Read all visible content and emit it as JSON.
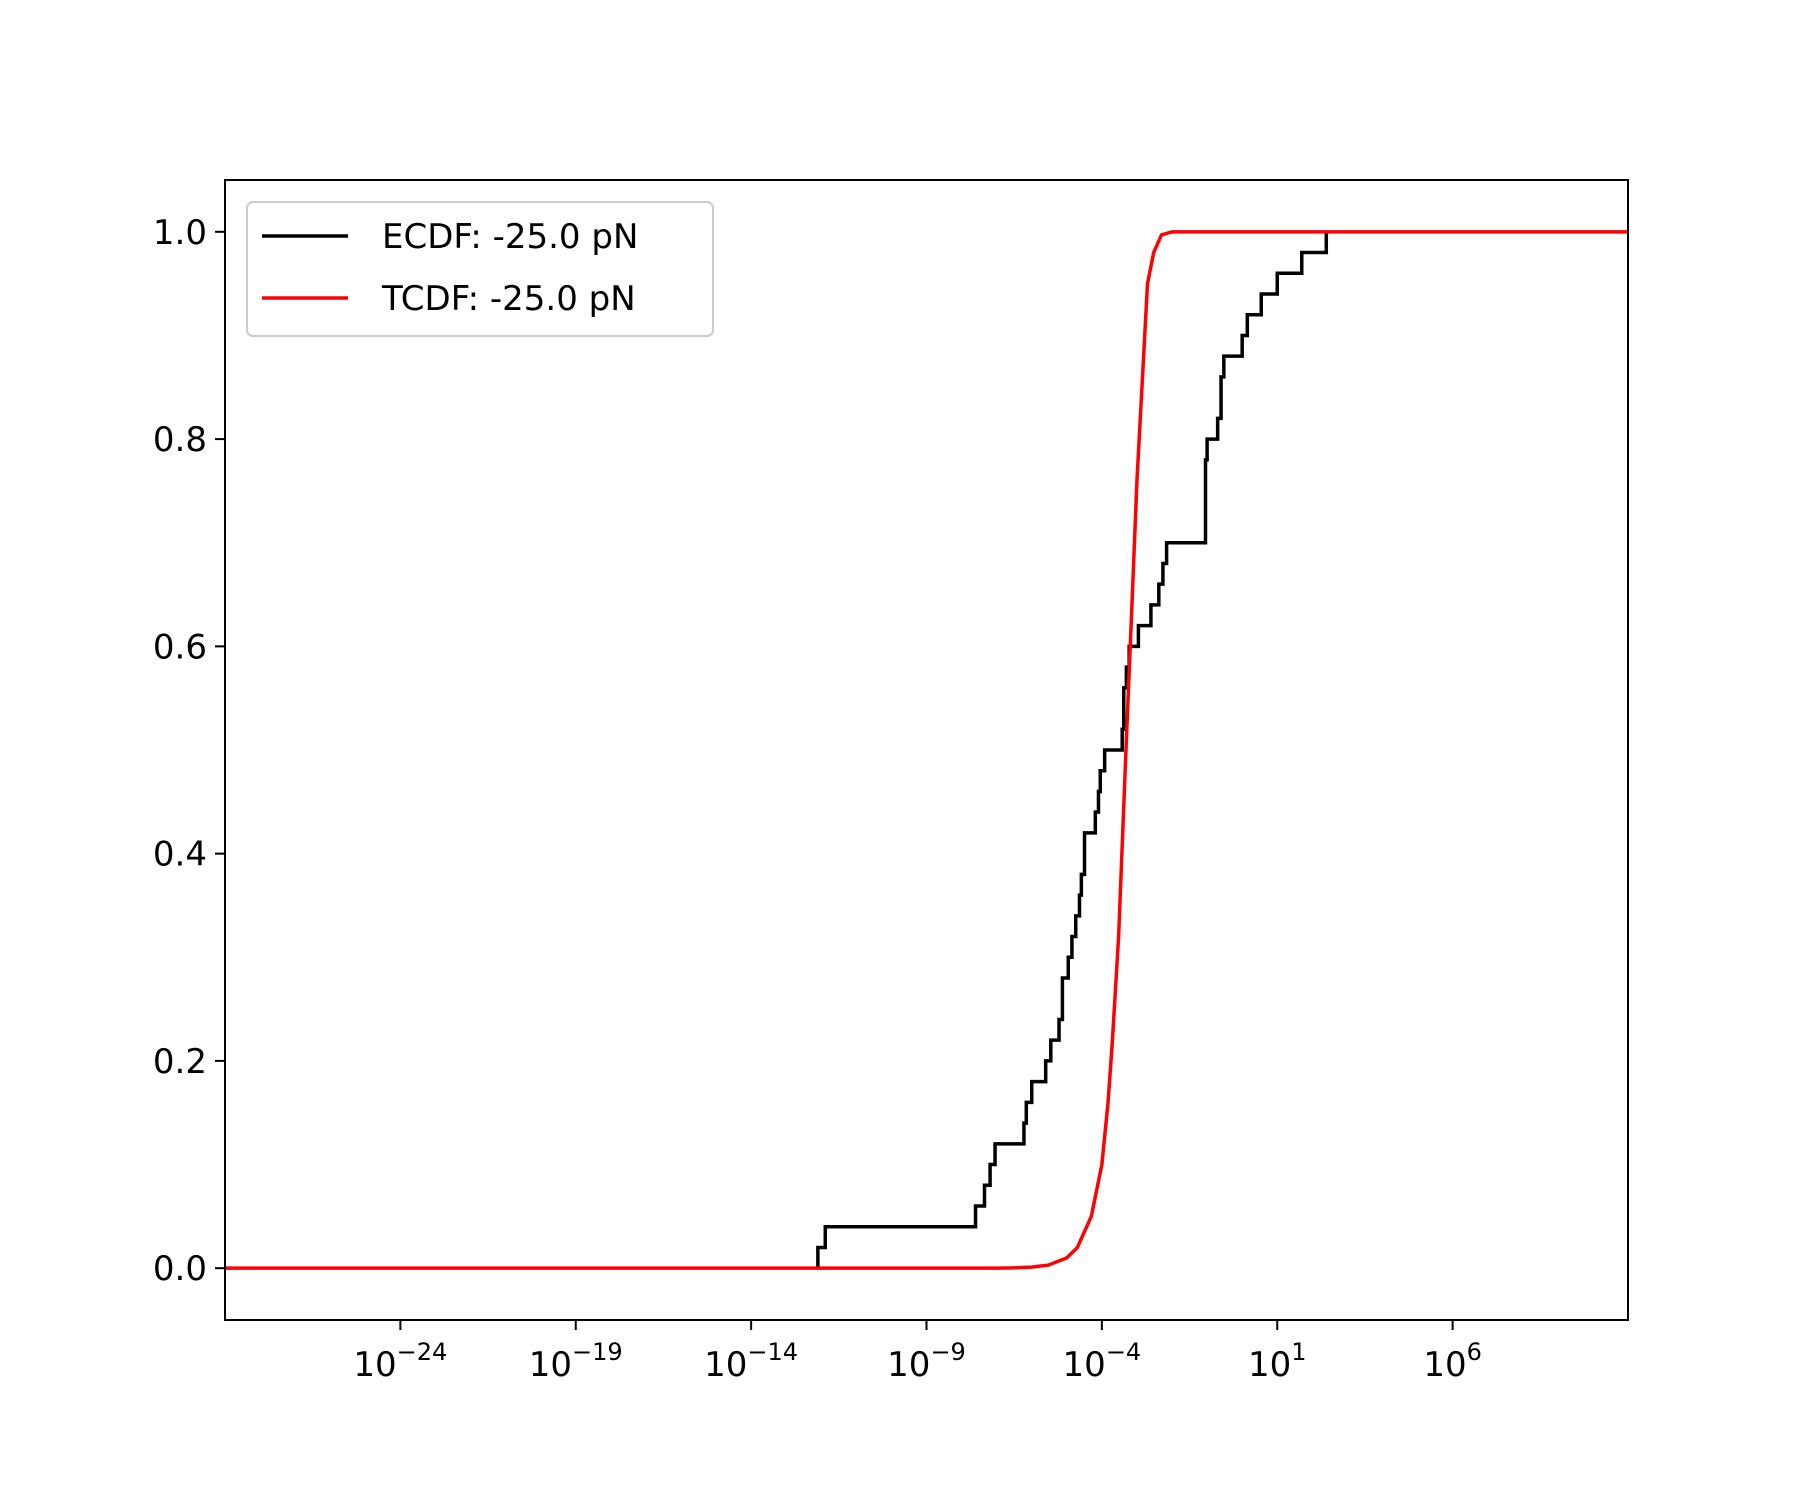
{
  "chart_data": {
    "type": "line",
    "title": "",
    "xlabel": "",
    "ylabel": "",
    "x_scale": "log",
    "xlim": [
      1e-29,
      100000000000.0
    ],
    "ylim": [
      -0.05,
      1.05
    ],
    "grid": false,
    "legend_position": "top-left",
    "x_ticks": [
      {
        "base": "10",
        "exp": "−24",
        "value": 1e-24
      },
      {
        "base": "10",
        "exp": "−19",
        "value": 1e-19
      },
      {
        "base": "10",
        "exp": "−14",
        "value": 1e-14
      },
      {
        "base": "10",
        "exp": "−9",
        "value": 1e-09
      },
      {
        "base": "10",
        "exp": "−4",
        "value": 0.0001
      },
      {
        "base": "10",
        "exp": "1",
        "value": 10
      },
      {
        "base": "10",
        "exp": "6",
        "value": 1000000.0
      }
    ],
    "y_ticks": [
      "0.0",
      "0.2",
      "0.4",
      "0.6",
      "0.8",
      "1.0"
    ],
    "series": [
      {
        "name": "ECDF: -25.0 pN",
        "color": "#000000",
        "kind": "step",
        "steps": [
          [
            8e-13,
            0.02
          ],
          [
            1.3e-12,
            0.04
          ],
          [
            2.5e-08,
            0.06
          ],
          [
            4.5e-08,
            0.08
          ],
          [
            6.5e-08,
            0.1
          ],
          [
            9e-08,
            0.12
          ],
          [
            6e-07,
            0.14
          ],
          [
            7e-07,
            0.16
          ],
          [
            1e-06,
            0.18
          ],
          [
            2.5e-06,
            0.2
          ],
          [
            3.5e-06,
            0.22
          ],
          [
            6e-06,
            0.24
          ],
          [
            7.5e-06,
            0.28
          ],
          [
            1.1e-05,
            0.3
          ],
          [
            1.4e-05,
            0.32
          ],
          [
            1.8e-05,
            0.34
          ],
          [
            2.3e-05,
            0.36
          ],
          [
            2.6e-05,
            0.38
          ],
          [
            3.2e-05,
            0.42
          ],
          [
            6.5e-05,
            0.44
          ],
          [
            8e-05,
            0.46
          ],
          [
            9e-05,
            0.48
          ],
          [
            0.00012,
            0.5
          ],
          [
            0.00038,
            0.52
          ],
          [
            0.00042,
            0.56
          ],
          [
            0.0005,
            0.58
          ],
          [
            0.0006,
            0.6
          ],
          [
            0.0011,
            0.62
          ],
          [
            0.0025,
            0.64
          ],
          [
            0.0042,
            0.66
          ],
          [
            0.0055,
            0.68
          ],
          [
            0.007,
            0.7
          ],
          [
            0.09,
            0.78
          ],
          [
            0.1,
            0.8
          ],
          [
            0.2,
            0.82
          ],
          [
            0.25,
            0.86
          ],
          [
            0.3,
            0.88
          ],
          [
            1,
            0.9
          ],
          [
            1.4,
            0.92
          ],
          [
            3.5,
            0.94
          ],
          [
            10,
            0.96
          ],
          [
            50,
            0.98
          ],
          [
            250,
            1.0
          ]
        ],
        "x_start": 8e-13,
        "x_end": 250
      },
      {
        "name": "TCDF: -25.0 pN",
        "color": "#ff0000",
        "kind": "line",
        "x_points": [
          1e-29,
          1e-09,
          1e-08,
          3e-08,
          1e-07,
          3e-07,
          1e-06,
          3e-06,
          1e-05,
          2e-05,
          5e-05,
          0.0001,
          0.00015,
          0.0002,
          0.0003,
          0.0005,
          0.0007,
          0.001,
          0.002,
          0.003,
          0.005,
          0.01,
          100000000000.0
        ],
        "y_points": [
          0,
          0,
          1e-05,
          3e-05,
          0.0001,
          0.0003,
          0.001,
          0.003,
          0.01,
          0.02,
          0.05,
          0.1,
          0.16,
          0.22,
          0.32,
          0.51,
          0.63,
          0.76,
          0.95,
          0.98,
          0.997,
          1,
          1
        ]
      }
    ]
  }
}
